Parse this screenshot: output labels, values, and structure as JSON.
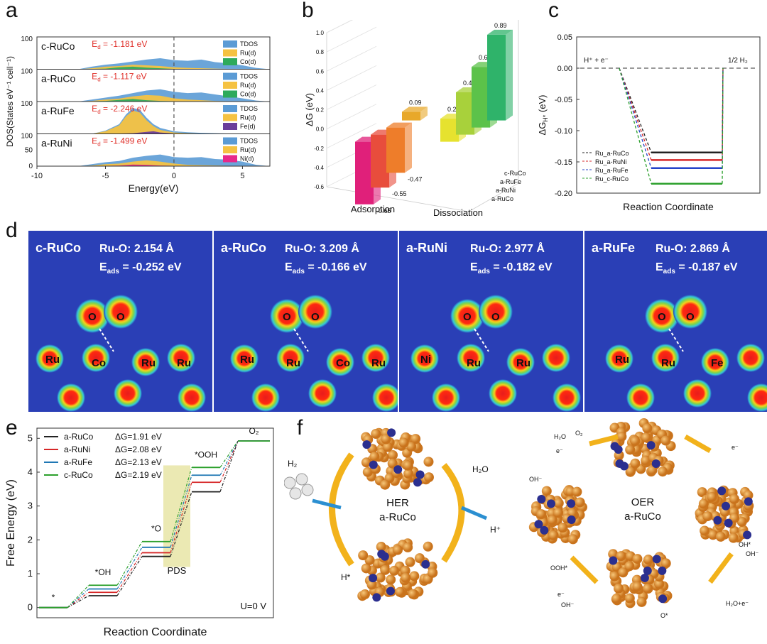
{
  "panel_letters": [
    "a",
    "b",
    "c",
    "d",
    "e",
    "f"
  ],
  "chart_data": [
    {
      "panel": "a",
      "type": "area",
      "xlabel": "Energy(eV)",
      "ylabel": "DOS(States eV⁻¹ cell⁻¹)",
      "xticks": [
        "-10",
        "-5",
        "0",
        "5"
      ],
      "xlim": [
        -10,
        7
      ],
      "yticks_top": "100",
      "yticks": [
        "0",
        "50",
        "100"
      ],
      "ylim": [
        0,
        100
      ],
      "subpanels": [
        {
          "name": "c-RuCo",
          "ed_label": "E",
          "ed_sub": "d",
          "ed_value": "= -1.181 eV",
          "ed": -1.181,
          "legend": [
            "TDOS",
            "Ru(d)",
            "Co(d)"
          ],
          "colors": [
            "#5b9bd5",
            "#f5c242",
            "#2eaa5c"
          ],
          "tdos": [
            [
              -7,
              0
            ],
            [
              -6,
              8
            ],
            [
              -5,
              14
            ],
            [
              -4,
              18
            ],
            [
              -3,
              24
            ],
            [
              -2,
              30
            ],
            [
              -1,
              34
            ],
            [
              0,
              28
            ],
            [
              1,
              26
            ],
            [
              2,
              30
            ],
            [
              3,
              22
            ],
            [
              4,
              18
            ],
            [
              5,
              12
            ],
            [
              6,
              4
            ],
            [
              7,
              0
            ]
          ],
          "metal": [
            [
              -7,
              0
            ],
            [
              -6,
              3
            ],
            [
              -5,
              8
            ],
            [
              -4,
              10
            ],
            [
              -3,
              14
            ],
            [
              -2,
              12
            ],
            [
              -1,
              10
            ],
            [
              0,
              6
            ],
            [
              1,
              4
            ],
            [
              2,
              3
            ],
            [
              3,
              2
            ],
            [
              5,
              0
            ]
          ],
          "minor": [
            [
              -7,
              0
            ],
            [
              -5,
              2
            ],
            [
              -4,
              6
            ],
            [
              -3,
              8
            ],
            [
              -2,
              5
            ],
            [
              -1,
              3
            ],
            [
              0,
              1
            ],
            [
              2,
              0
            ]
          ]
        },
        {
          "name": "a-RuCo",
          "ed_label": "E",
          "ed_sub": "d",
          "ed_value": "= -1.117 eV",
          "ed": -1.117,
          "legend": [
            "TDOS",
            "Ru(d)",
            "Co(d)"
          ],
          "colors": [
            "#5b9bd5",
            "#f5c242",
            "#2eaa5c"
          ],
          "tdos": [
            [
              -7,
              0
            ],
            [
              -6,
              6
            ],
            [
              -5,
              12
            ],
            [
              -4,
              18
            ],
            [
              -3,
              26
            ],
            [
              -2,
              34
            ],
            [
              -1,
              38
            ],
            [
              0,
              30
            ],
            [
              1,
              26
            ],
            [
              2,
              28
            ],
            [
              3,
              22
            ],
            [
              4,
              16
            ],
            [
              5,
              10
            ],
            [
              6,
              3
            ],
            [
              7,
              0
            ]
          ],
          "metal": [
            [
              -7,
              0
            ],
            [
              -6,
              2
            ],
            [
              -5,
              6
            ],
            [
              -4,
              9
            ],
            [
              -3,
              16
            ],
            [
              -2,
              20
            ],
            [
              -1,
              18
            ],
            [
              0,
              10
            ],
            [
              1,
              6
            ],
            [
              2,
              4
            ],
            [
              3,
              2
            ],
            [
              5,
              0
            ]
          ],
          "minor": [
            [
              -7,
              0
            ],
            [
              -5,
              2
            ],
            [
              -4,
              5
            ],
            [
              -3,
              8
            ],
            [
              -2,
              4
            ],
            [
              -1,
              2
            ],
            [
              0,
              1
            ],
            [
              2,
              0
            ]
          ]
        },
        {
          "name": "a-RuFe",
          "ed_label": "E",
          "ed_sub": "d",
          "ed_value": "= -2.246 eV",
          "ed": -2.246,
          "legend": [
            "TDOS",
            "Ru(d)",
            "Fe(d)"
          ],
          "colors": [
            "#5b9bd5",
            "#f5c242",
            "#6a3d9a"
          ],
          "tdos": [
            [
              -6,
              0
            ],
            [
              -5,
              10
            ],
            [
              -4,
              30
            ],
            [
              -3.5,
              60
            ],
            [
              -3,
              80
            ],
            [
              -2.5,
              75
            ],
            [
              -2,
              50
            ],
            [
              -1.5,
              30
            ],
            [
              -1,
              18
            ],
            [
              0,
              8
            ],
            [
              1,
              5
            ],
            [
              2,
              3
            ],
            [
              3,
              2
            ],
            [
              5,
              0
            ]
          ],
          "metal": [
            [
              -6,
              0
            ],
            [
              -5,
              8
            ],
            [
              -4,
              26
            ],
            [
              -3.5,
              54
            ],
            [
              -3,
              72
            ],
            [
              -2.5,
              66
            ],
            [
              -2,
              42
            ],
            [
              -1.5,
              24
            ],
            [
              -1,
              12
            ],
            [
              0,
              4
            ],
            [
              1,
              2
            ],
            [
              3,
              0
            ]
          ],
          "minor": [
            [
              -5,
              0
            ],
            [
              -3,
              2
            ],
            [
              -2,
              6
            ],
            [
              -1.5,
              8
            ],
            [
              -1,
              4
            ],
            [
              0,
              1
            ],
            [
              1,
              0
            ]
          ]
        },
        {
          "name": "a-RuNi",
          "ed_label": "E",
          "ed_sub": "d",
          "ed_value": "= -1.499 eV",
          "ed": -1.499,
          "legend": [
            "TDOS",
            "Ru(d)",
            "Ni(d)"
          ],
          "colors": [
            "#5b9bd5",
            "#f5c242",
            "#e7298a"
          ],
          "tdos": [
            [
              -7,
              0
            ],
            [
              -6,
              6
            ],
            [
              -5,
              12
            ],
            [
              -4,
              16
            ],
            [
              -3,
              26
            ],
            [
              -2,
              32
            ],
            [
              -1,
              36
            ],
            [
              0,
              28
            ],
            [
              1,
              26
            ],
            [
              2,
              28
            ],
            [
              3,
              22
            ],
            [
              4,
              20
            ],
            [
              5,
              14
            ],
            [
              6,
              4
            ],
            [
              7,
              0
            ]
          ],
          "metal": [
            [
              -7,
              0
            ],
            [
              -6,
              2
            ],
            [
              -5,
              6
            ],
            [
              -4,
              8
            ],
            [
              -3,
              14
            ],
            [
              -2,
              18
            ],
            [
              -1,
              14
            ],
            [
              0,
              8
            ],
            [
              1,
              4
            ],
            [
              2,
              3
            ],
            [
              4,
              1
            ],
            [
              5,
              0
            ]
          ],
          "minor": [
            [
              -6,
              0
            ],
            [
              -4,
              2
            ],
            [
              -3,
              5
            ],
            [
              -2,
              4
            ],
            [
              -1,
              2
            ],
            [
              0,
              1
            ],
            [
              1,
              0
            ]
          ]
        }
      ]
    },
    {
      "panel": "b",
      "type": "bar",
      "ylabel": "ΔG (eV)",
      "yticks": [
        "-0.6",
        "-0.4",
        "-0.2",
        "0.0",
        "0.2",
        "0.4",
        "0.6",
        "0.8",
        "1.0"
      ],
      "ylim": [
        -0.6,
        1.0
      ],
      "categories": [
        "Adsorption",
        "Dissociation"
      ],
      "series_labels": [
        "c-RuCo",
        "a-RuFe",
        "a-RuNi",
        "a-RuCo"
      ],
      "adsorption": [
        -0.65,
        -0.55,
        -0.47,
        0.09
      ],
      "dissociation": [
        0.24,
        0.44,
        0.63,
        0.89
      ],
      "value_labels_ads": [
        "-0.65",
        "-0.55",
        "-0.47",
        "0.09"
      ],
      "value_labels_dis": [
        "0.24",
        "0.44",
        "0.63",
        "0.89"
      ],
      "colors_ads": [
        "#e0207a",
        "#e84d3c",
        "#ee7d2a",
        "#e8a82a"
      ],
      "colors_dis": [
        "#e6e22f",
        "#a8d13b",
        "#5cc24a",
        "#2fb36a"
      ]
    },
    {
      "panel": "c",
      "type": "line",
      "xlabel": "Reaction Coordinate",
      "ylabel": "ΔG",
      "ylabel_sub": "H*",
      "ylabel_unit": "(eV)",
      "yticks": [
        "0.05",
        "0.00",
        "-0.05",
        "-0.10",
        "-0.15",
        "-0.20"
      ],
      "ylim": [
        -0.2,
        0.05
      ],
      "start_label": "H⁺ + e⁻",
      "end_label": "1/2 H₂",
      "series": [
        {
          "name": "Ru_a-RuCo",
          "value": -0.135,
          "color": "#222222"
        },
        {
          "name": "Ru_a-RuNi",
          "value": -0.147,
          "color": "#d62728"
        },
        {
          "name": "Ru_a-RuFe",
          "value": -0.16,
          "color": "#2443c9"
        },
        {
          "name": "Ru_c-RuCo",
          "value": -0.185,
          "color": "#2ca02c"
        }
      ]
    },
    {
      "panel": "e",
      "type": "line",
      "xlabel": "Reaction Coordinate",
      "ylabel": "Free Energy (eV)",
      "yticks": [
        "0",
        "1",
        "2",
        "3",
        "4",
        "5"
      ],
      "ylim": [
        -0.3,
        5.3
      ],
      "step_labels": [
        "*",
        "*OH",
        "*O",
        "*OOH",
        "O₂"
      ],
      "pds_label": "PDS",
      "condition": "U=0 V",
      "series": [
        {
          "name": "a-RuCo",
          "dg": "ΔG=1.91 eV",
          "values": [
            0,
            0.35,
            1.51,
            3.42,
            4.92
          ],
          "color": "#222222"
        },
        {
          "name": "a-RuNi",
          "dg": "ΔG=2.08 eV",
          "values": [
            0,
            0.45,
            1.62,
            3.7,
            4.92
          ],
          "color": "#d62728"
        },
        {
          "name": "a-RuFe",
          "dg": "ΔG=2.13 eV",
          "values": [
            0,
            0.55,
            1.78,
            3.91,
            4.92
          ],
          "color": "#1f77b4"
        },
        {
          "name": "c-RuCo",
          "dg": "ΔG=2.19 eV",
          "values": [
            0,
            0.66,
            1.95,
            4.14,
            4.92
          ],
          "color": "#2ca02c"
        }
      ]
    }
  ],
  "panel_d": {
    "maps": [
      {
        "name": "c-RuCo",
        "bond": "Ru-O: 2.154 Å",
        "eads_label": "E",
        "eads_sub": "ads",
        "eads_value": "= -0.252 eV",
        "atoms": [
          "O",
          "O",
          "Ru",
          "Co",
          "Ru",
          "Ru"
        ]
      },
      {
        "name": "a-RuCo",
        "bond": "Ru-O: 3.209 Å",
        "eads_label": "E",
        "eads_sub": "ads",
        "eads_value": "= -0.166 eV",
        "atoms": [
          "O",
          "O",
          "Ru",
          "Ru",
          "Co",
          "Ru"
        ]
      },
      {
        "name": "a-RuNi",
        "bond": "Ru-O: 2.977 Å",
        "eads_label": "E",
        "eads_sub": "ads",
        "eads_value": "= -0.182 eV",
        "atoms": [
          "O",
          "O",
          "Ni",
          "Ru",
          "Ru"
        ]
      },
      {
        "name": "a-RuFe",
        "bond": "Ru-O: 2.869 Å",
        "eads_label": "E",
        "eads_sub": "ads",
        "eads_value": "= -0.187 eV",
        "atoms": [
          "O",
          "O",
          "Ru",
          "Ru",
          "Fe"
        ]
      }
    ]
  },
  "panel_f": {
    "her": {
      "title": "HER",
      "catalyst": "a-RuCo",
      "h2": "H₂",
      "h2o": "H₂O",
      "hplus": "H⁺",
      "hstar": "H*"
    },
    "oer": {
      "title": "OER",
      "catalyst": "a-RuCo",
      "labels": [
        "H₂O",
        "O₂",
        "e⁻",
        "e⁻",
        "OH⁻",
        "OH*",
        "OH⁻",
        "OOH*",
        "e⁻",
        "OH⁻",
        "O*",
        "H₂O+e⁻"
      ]
    }
  }
}
